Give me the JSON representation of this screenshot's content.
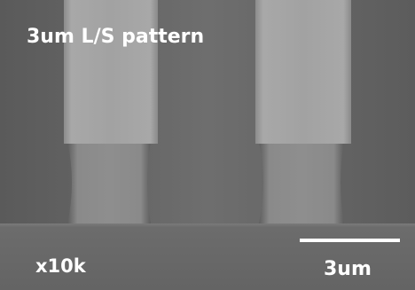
{
  "title": "3um L/S pattern",
  "magnification": "x10k",
  "scale_bar": {
    "label": "3um"
  }
}
